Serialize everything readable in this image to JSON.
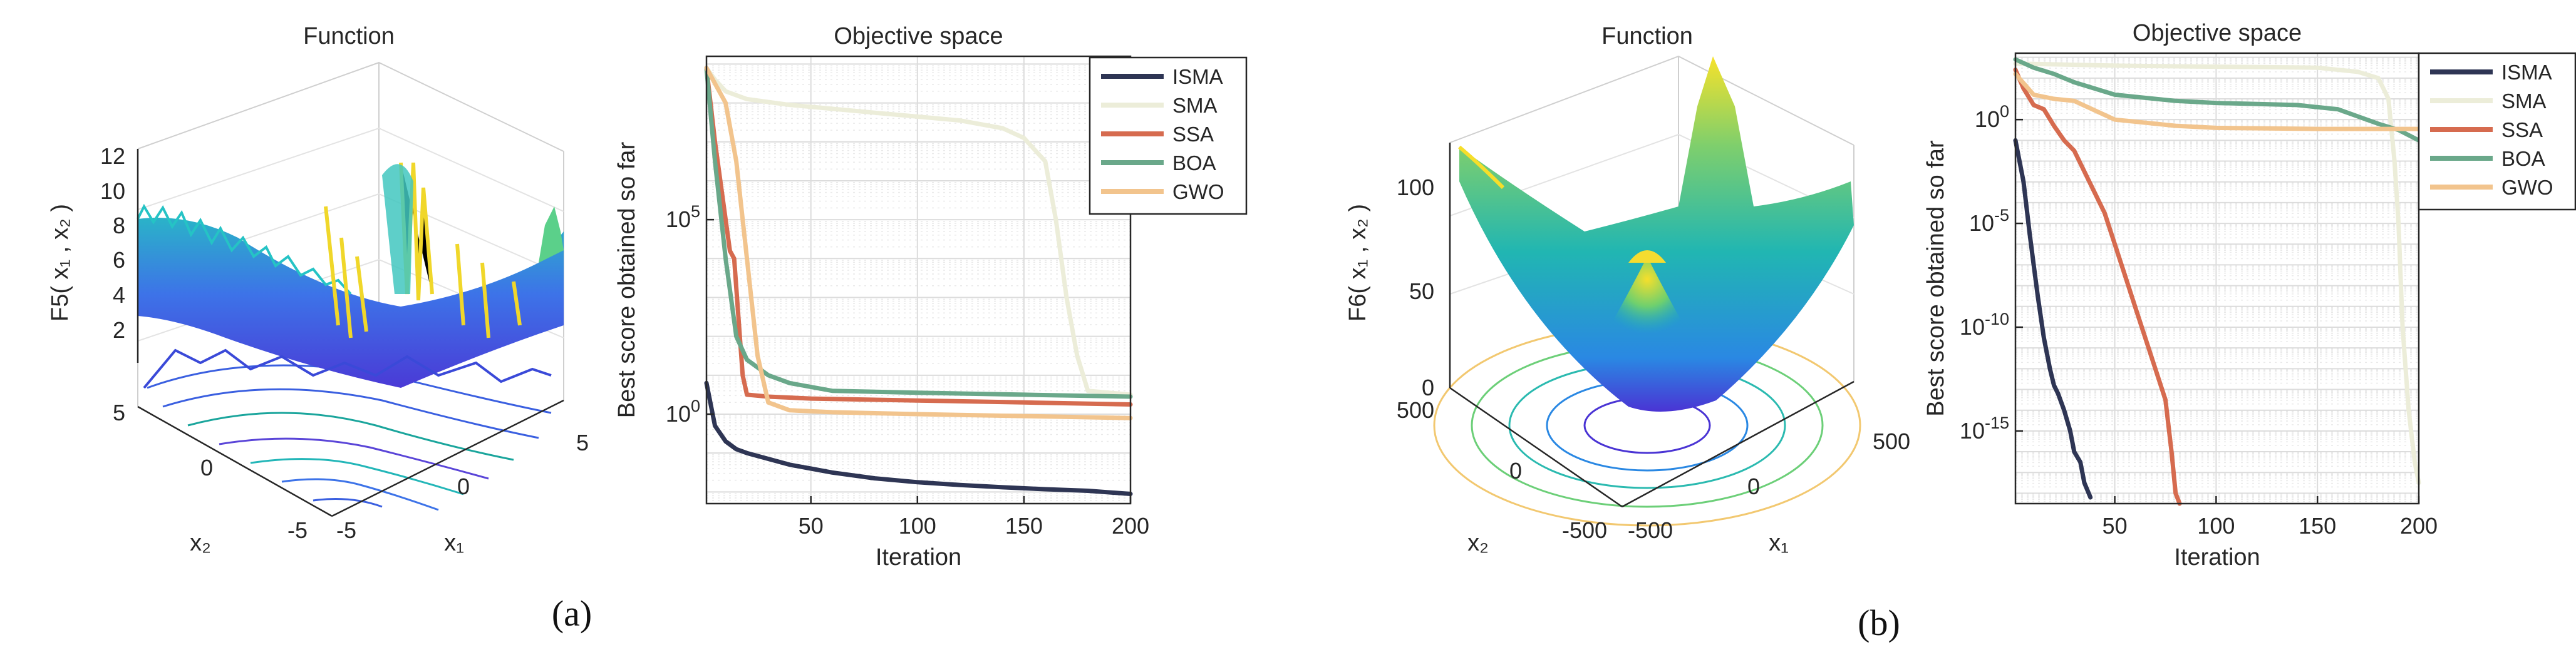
{
  "panels": [
    {
      "caption": "(a)",
      "surface": {
        "title": "Function",
        "zlabel": "F5( x₁ , x₂ )",
        "xlabel": "x₁",
        "ylabel": "x₂",
        "zticks": [
          "2",
          "4",
          "6",
          "8",
          "10",
          "12"
        ],
        "xticks": [
          "-5",
          "0",
          "5"
        ],
        "yticks": [
          "-5",
          "0",
          "5"
        ]
      }
    },
    {
      "caption": "(b)",
      "surface": {
        "title": "Function",
        "zlabel": "F6( x₁ , x₂ )",
        "xlabel": "x₁",
        "ylabel": "x₂",
        "zticks": [
          "0",
          "50",
          "100"
        ],
        "xticks": [
          "-500",
          "0",
          "500"
        ],
        "yticks": [
          "-500",
          "0",
          "500"
        ]
      }
    }
  ],
  "chart_data": [
    {
      "type": "line",
      "title": "Objective space",
      "xlabel": "Iteration",
      "ylabel": "Best score obtained so far",
      "yscale": "log",
      "xlim": [
        1,
        200
      ],
      "ylim_log10": [
        -2.3,
        9.2
      ],
      "xticks": [
        50,
        100,
        150,
        200
      ],
      "yticks": [
        {
          "exp": 0,
          "label": "10^0"
        },
        {
          "exp": 5,
          "label": "10^5"
        }
      ],
      "legend": "top-right",
      "series": [
        {
          "name": "ISMA",
          "color": "#2e3554",
          "x": [
            1,
            5,
            10,
            15,
            20,
            30,
            40,
            50,
            60,
            80,
            100,
            120,
            140,
            160,
            180,
            200
          ],
          "log10_y": [
            0.8,
            -0.3,
            -0.7,
            -0.9,
            -1.0,
            -1.15,
            -1.3,
            -1.4,
            -1.5,
            -1.65,
            -1.75,
            -1.82,
            -1.88,
            -1.93,
            -1.97,
            -2.05
          ]
        },
        {
          "name": "SMA",
          "color": "#ecedd9",
          "x": [
            1,
            5,
            10,
            20,
            40,
            60,
            80,
            100,
            120,
            140,
            150,
            160,
            165,
            170,
            175,
            180,
            200
          ],
          "log10_y": [
            8.9,
            8.6,
            8.3,
            8.1,
            7.95,
            7.85,
            7.75,
            7.65,
            7.55,
            7.35,
            7.1,
            6.5,
            5.0,
            3.0,
            1.5,
            0.6,
            0.5
          ]
        },
        {
          "name": "SSA",
          "color": "#d66b4f",
          "x": [
            1,
            5,
            10,
            12,
            14,
            18,
            20,
            30,
            50,
            100,
            150,
            200
          ],
          "log10_y": [
            8.9,
            7.0,
            5.0,
            4.2,
            4.0,
            1.0,
            0.5,
            0.45,
            0.4,
            0.35,
            0.3,
            0.25
          ]
        },
        {
          "name": "BOA",
          "color": "#6aa88a",
          "x": [
            1,
            5,
            10,
            15,
            20,
            30,
            40,
            60,
            100,
            150,
            200
          ],
          "log10_y": [
            8.9,
            6.5,
            4.0,
            2.0,
            1.4,
            1.0,
            0.8,
            0.6,
            0.55,
            0.5,
            0.45
          ]
        },
        {
          "name": "GWO",
          "color": "#f2c48d",
          "x": [
            1,
            10,
            15,
            20,
            25,
            30,
            40,
            60,
            100,
            150,
            200
          ],
          "log10_y": [
            8.9,
            8.0,
            6.5,
            4.0,
            1.5,
            0.3,
            0.1,
            0.05,
            0.0,
            -0.05,
            -0.1
          ]
        }
      ]
    },
    {
      "type": "line",
      "title": "Objective space",
      "xlabel": "Iteration",
      "ylabel": "Best score obtained so far",
      "yscale": "log",
      "xlim": [
        1,
        200
      ],
      "ylim_log10": [
        -18.5,
        3.2
      ],
      "xticks": [
        50,
        100,
        150,
        200
      ],
      "yticks": [
        {
          "exp": 0,
          "label": "10^0"
        },
        {
          "exp": -5,
          "label": "10^-5"
        },
        {
          "exp": -10,
          "label": "10^-10"
        },
        {
          "exp": -15,
          "label": "10^-15"
        }
      ],
      "legend": "top-right",
      "series": [
        {
          "name": "ISMA",
          "color": "#2e3554",
          "x": [
            1,
            5,
            8,
            10,
            12,
            15,
            18,
            20,
            22,
            25,
            28,
            30,
            33,
            35,
            38
          ],
          "log10_y": [
            -1.0,
            -3.0,
            -5.5,
            -7.0,
            -8.5,
            -10.5,
            -12.0,
            -12.8,
            -13.2,
            -14.0,
            -15.0,
            -16.0,
            -16.5,
            -17.5,
            -18.2
          ]
        },
        {
          "name": "SMA",
          "color": "#ecedd9",
          "x": [
            1,
            50,
            100,
            150,
            170,
            180,
            185,
            188,
            190,
            192,
            195,
            198,
            200
          ],
          "log10_y": [
            2.7,
            2.6,
            2.55,
            2.5,
            2.3,
            2.0,
            1.0,
            -2.0,
            -5.0,
            -10.0,
            -14.0,
            -16.5,
            -17.5
          ]
        },
        {
          "name": "SSA",
          "color": "#d66b4f",
          "x": [
            1,
            5,
            10,
            15,
            20,
            25,
            30,
            35,
            40,
            45,
            50,
            55,
            60,
            65,
            70,
            75,
            78,
            80,
            82
          ],
          "log10_y": [
            2.4,
            1.5,
            0.7,
            0.5,
            -0.3,
            -1.0,
            -1.5,
            -2.5,
            -3.5,
            -4.5,
            -6.0,
            -7.5,
            -9.0,
            -10.5,
            -12.0,
            -13.5,
            -16.0,
            -18.0,
            -18.5
          ]
        },
        {
          "name": "BOA",
          "color": "#6aa88a",
          "x": [
            1,
            10,
            20,
            30,
            50,
            80,
            100,
            140,
            160,
            180,
            190,
            200
          ],
          "log10_y": [
            2.9,
            2.5,
            2.2,
            1.8,
            1.2,
            0.9,
            0.8,
            0.7,
            0.5,
            -0.2,
            -0.5,
            -1.0
          ]
        },
        {
          "name": "GWO",
          "color": "#f2c48d",
          "x": [
            1,
            10,
            20,
            30,
            50,
            80,
            100,
            150,
            200
          ],
          "log10_y": [
            2.2,
            1.2,
            1.0,
            0.9,
            0.0,
            -0.3,
            -0.4,
            -0.45,
            -0.45
          ]
        }
      ]
    }
  ]
}
